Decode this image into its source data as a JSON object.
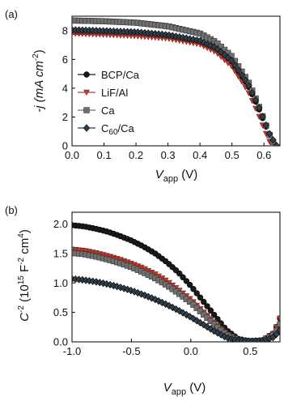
{
  "chart_data": [
    {
      "type": "line",
      "panel_label": "(a)",
      "xlabel": {
        "main": "V",
        "sub": "app",
        "unit": " (V)"
      },
      "ylabel": {
        "pre": "-j (mA cm",
        "sup": "-2",
        "post": ")"
      },
      "xlim": [
        0.0,
        0.65
      ],
      "ylim": [
        0,
        9
      ],
      "x_ticks": [
        "0.0",
        "0.1",
        "0.2",
        "0.3",
        "0.4",
        "0.5",
        "0.6"
      ],
      "y_ticks": [
        "0",
        "2",
        "4",
        "6",
        "8"
      ],
      "legend_position": "center-left",
      "series": [
        {
          "name": "BCP/Ca",
          "marker": "circle",
          "color": "#1a1a1a",
          "x": [
            0.0,
            0.1,
            0.2,
            0.3,
            0.4,
            0.45,
            0.5,
            0.55,
            0.58,
            0.6,
            0.62,
            0.635
          ],
          "y": [
            7.9,
            7.85,
            7.78,
            7.6,
            7.2,
            6.7,
            5.8,
            4.2,
            2.8,
            1.7,
            0.6,
            0.0
          ]
        },
        {
          "name": "LiF/Al",
          "marker": "triangle-down",
          "color": "#c0392b",
          "x": [
            0.0,
            0.1,
            0.2,
            0.3,
            0.4,
            0.45,
            0.5,
            0.55,
            0.58,
            0.6,
            0.615,
            0.625
          ],
          "y": [
            7.8,
            7.72,
            7.62,
            7.45,
            7.05,
            6.5,
            5.5,
            3.8,
            2.3,
            1.2,
            0.4,
            0.0
          ]
        },
        {
          "name": "Ca",
          "marker": "square",
          "color": "#707070",
          "x": [
            0.0,
            0.1,
            0.2,
            0.3,
            0.4,
            0.45,
            0.5,
            0.55,
            0.58,
            0.6,
            0.62,
            0.635
          ],
          "y": [
            8.7,
            8.65,
            8.55,
            8.3,
            7.8,
            7.2,
            6.2,
            4.5,
            3.0,
            1.8,
            0.6,
            0.0
          ]
        },
        {
          "name": "C60/Ca",
          "legend_main": "C",
          "legend_sub": "60",
          "legend_post": "/Ca",
          "marker": "diamond",
          "color": "#2f3f4a",
          "x": [
            0.0,
            0.1,
            0.2,
            0.3,
            0.4,
            0.45,
            0.5,
            0.55,
            0.58,
            0.6,
            0.62,
            0.64
          ],
          "y": [
            8.05,
            7.98,
            7.9,
            7.7,
            7.3,
            6.8,
            5.9,
            4.3,
            2.9,
            1.8,
            0.7,
            0.0
          ]
        }
      ]
    },
    {
      "type": "line",
      "panel_label": "(b)",
      "xlabel": {
        "main": "V",
        "sub": "app",
        "unit": " (V)"
      },
      "ylabel": {
        "pre": "C",
        "sup1": "-2",
        "mid": " (10",
        "sup2": "15",
        "mid2": " F",
        "sup3": "-2",
        "mid3": " cm",
        "sup4": "4",
        "post": ")"
      },
      "xlim": [
        -1.0,
        0.75
      ],
      "ylim": [
        0,
        2.2
      ],
      "x_ticks": [
        "-1.0",
        "-0.5",
        "0.0",
        "0.5"
      ],
      "y_ticks": [
        "0.0",
        "0.5",
        "1.0",
        "1.5",
        "2.0"
      ],
      "series": [
        {
          "name": "BCP/Ca",
          "marker": "circle",
          "color": "#1a1a1a",
          "x": [
            -1.0,
            -0.9,
            -0.8,
            -0.7,
            -0.6,
            -0.5,
            -0.4,
            -0.3,
            -0.2,
            -0.1,
            0.0,
            0.1,
            0.2,
            0.3,
            0.4,
            0.5,
            0.6,
            0.7,
            0.75
          ],
          "y": [
            1.98,
            1.96,
            1.92,
            1.87,
            1.8,
            1.72,
            1.62,
            1.5,
            1.35,
            1.17,
            0.95,
            0.7,
            0.45,
            0.2,
            0.05,
            0.01,
            0.02,
            0.15,
            0.4
          ]
        },
        {
          "name": "LiF/Al",
          "marker": "triangle-down",
          "color": "#c0392b",
          "x": [
            -1.0,
            -0.9,
            -0.8,
            -0.7,
            -0.6,
            -0.5,
            -0.4,
            -0.3,
            -0.2,
            -0.1,
            0.0,
            0.1,
            0.2,
            0.3,
            0.4,
            0.5,
            0.6,
            0.7,
            0.75
          ],
          "y": [
            1.57,
            1.55,
            1.51,
            1.46,
            1.4,
            1.33,
            1.25,
            1.15,
            1.03,
            0.88,
            0.72,
            0.52,
            0.32,
            0.14,
            0.03,
            0.01,
            0.02,
            0.15,
            0.4
          ]
        },
        {
          "name": "Ca",
          "marker": "square",
          "color": "#707070",
          "x": [
            -1.0,
            -0.9,
            -0.8,
            -0.7,
            -0.6,
            -0.5,
            -0.4,
            -0.3,
            -0.2,
            -0.1,
            0.0,
            0.1,
            0.2,
            0.3,
            0.4,
            0.5,
            0.6,
            0.7,
            0.75
          ],
          "y": [
            1.51,
            1.49,
            1.45,
            1.4,
            1.34,
            1.27,
            1.18,
            1.08,
            0.96,
            0.82,
            0.67,
            0.48,
            0.29,
            0.12,
            0.03,
            0.01,
            0.02,
            0.12,
            0.3
          ]
        },
        {
          "name": "C60/Ca",
          "marker": "diamond",
          "color": "#2f3f4a",
          "x": [
            -1.0,
            -0.9,
            -0.8,
            -0.7,
            -0.6,
            -0.5,
            -0.4,
            -0.3,
            -0.2,
            -0.1,
            0.0,
            0.1,
            0.2,
            0.3,
            0.4,
            0.5,
            0.6,
            0.7,
            0.75
          ],
          "y": [
            1.07,
            1.05,
            1.02,
            0.98,
            0.93,
            0.87,
            0.8,
            0.72,
            0.63,
            0.53,
            0.42,
            0.3,
            0.18,
            0.07,
            0.02,
            0.01,
            0.02,
            0.08,
            0.2
          ]
        }
      ]
    }
  ]
}
